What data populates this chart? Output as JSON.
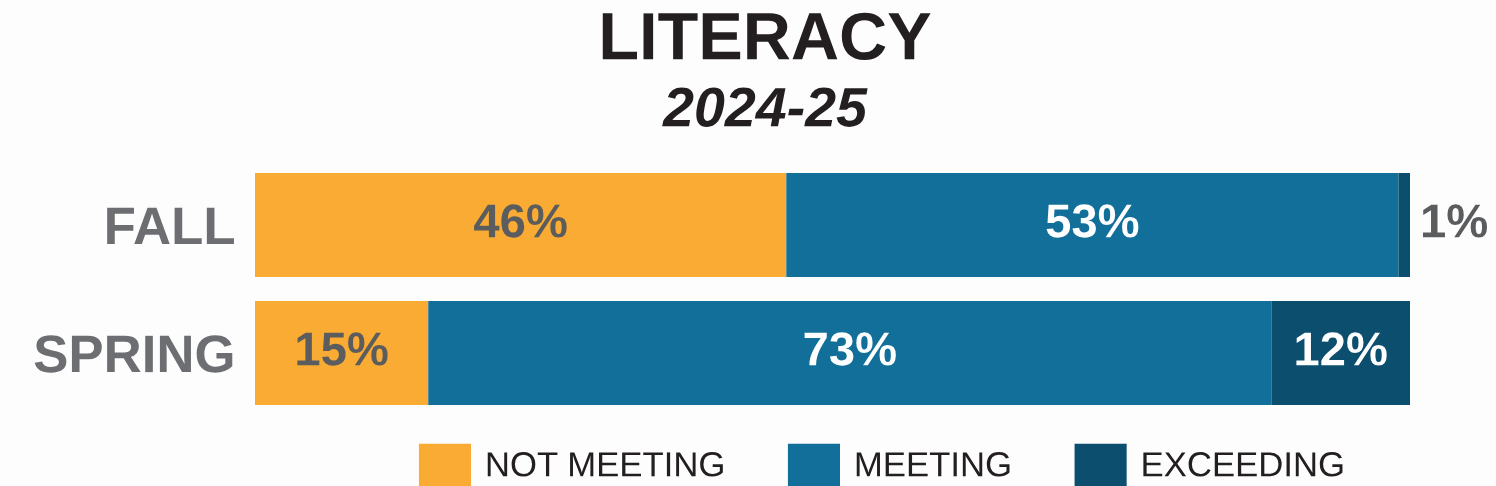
{
  "chart_data": {
    "type": "bar",
    "orientation": "horizontal",
    "stacked": true,
    "title": "LITERACY",
    "subtitle": "2024-25",
    "categories": [
      "FALL",
      "SPRING"
    ],
    "series": [
      {
        "name": "NOT MEETING",
        "color": "#f9ab33",
        "values": [
          46,
          15
        ],
        "value_labels": [
          "46%",
          "15%"
        ]
      },
      {
        "name": "MEETING",
        "color": "#126f9a",
        "values": [
          53,
          73
        ],
        "value_labels": [
          "53%",
          "73%"
        ]
      },
      {
        "name": "EXCEEDING",
        "color": "#0c4e6e",
        "values": [
          1,
          12
        ],
        "value_labels": [
          "1%",
          "12%"
        ]
      }
    ],
    "xlim": [
      0,
      100
    ],
    "legend": "bottom",
    "tick_labels": "y",
    "grid": false
  }
}
